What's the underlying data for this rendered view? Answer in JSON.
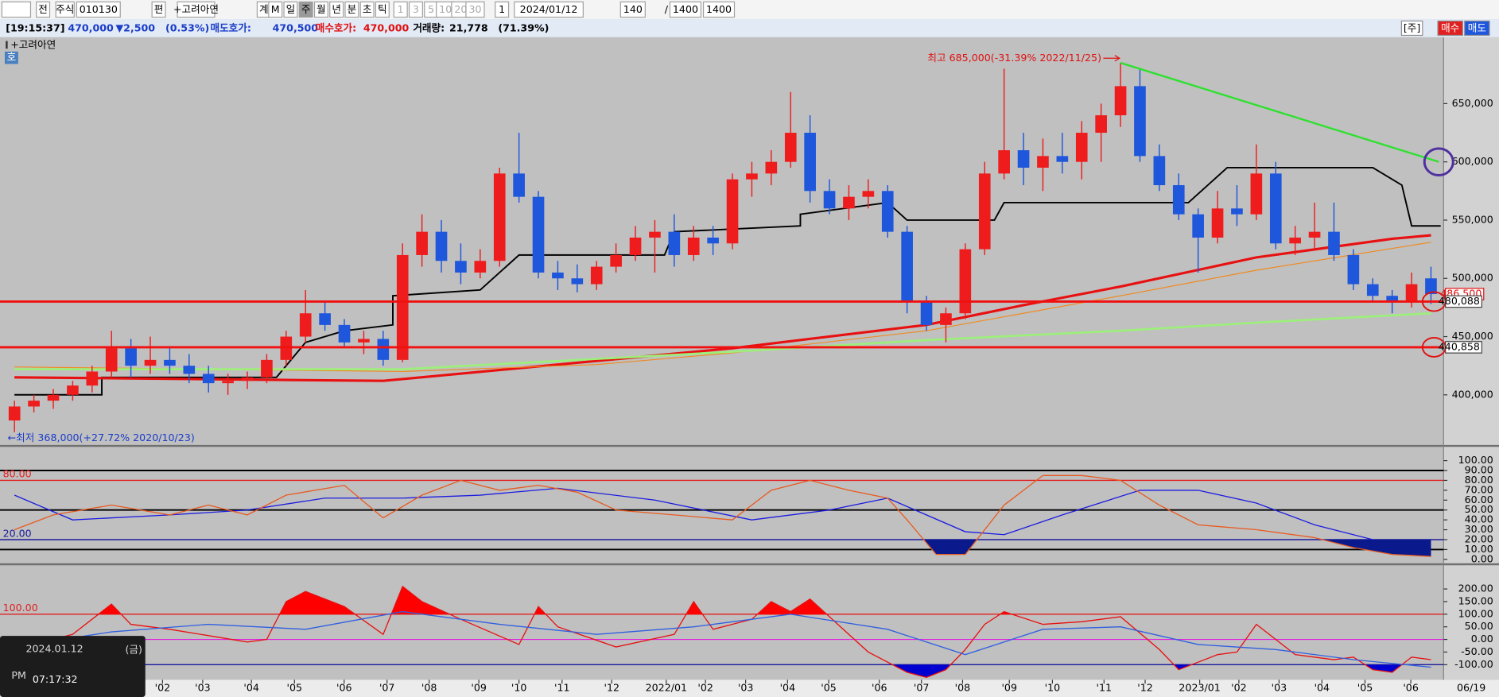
{
  "toolbar": {
    "items": [
      "전",
      "주식",
      "010130",
      "편",
      "+고려아연",
      "계",
      "M",
      "일",
      "주",
      "월",
      "년",
      "분",
      "초",
      "틱",
      "1",
      "3",
      "5",
      "10",
      "20",
      "30",
      "1",
      "2024/01/12",
      "140",
      "/",
      "1400",
      "1400"
    ]
  },
  "info_bar": [
    {
      "text": "[19:15:37]",
      "color": "#000000"
    },
    {
      "text": "470,000",
      "color": "#1a3cc8"
    },
    {
      "text": "▼2,500",
      "color": "#1a3cc8"
    },
    {
      "text": "(0.53%)",
      "color": "#1a3cc8"
    },
    {
      "text": "매도호가:",
      "color": "#1a3cc8"
    },
    {
      "text": "470,500",
      "color": "#1a3cc8"
    },
    {
      "text": "매수호가:",
      "color": "#e01010"
    },
    {
      "text": "470,000",
      "color": "#e01010"
    },
    {
      "text": "거래량:",
      "color": "#000000"
    },
    {
      "text": "21,778",
      "color": "#000000"
    },
    {
      "text": "(71.39%)",
      "color": "#000000"
    }
  ],
  "side_buttons": [
    {
      "text": "[주]",
      "color": "#ffffff"
    },
    {
      "text": "매수",
      "color": "#e02020"
    },
    {
      "text": "매도",
      "color": "#1e56dc"
    }
  ],
  "chart_data": [
    {
      "type": "candlestick",
      "title": "+고려아연",
      "badge": "호",
      "up_color": "#ee1c1c",
      "down_color": "#1e56dc",
      "xlim": [
        -0.5,
        73.5
      ],
      "ylim": [
        357000,
        707000
      ],
      "yticks": [
        {
          "value": 400000,
          "label": "400,000"
        },
        {
          "value": 450000,
          "label": "450,000"
        },
        {
          "value": 500000,
          "label": "500,000"
        },
        {
          "value": 550000,
          "label": "550,000"
        },
        {
          "value": 600000,
          "label": "600,000"
        },
        {
          "value": 650000,
          "label": "650,000"
        }
      ],
      "open": [
        378000,
        390000,
        395000,
        400000,
        408000,
        420000,
        440000,
        425000,
        430000,
        425000,
        418000,
        410000,
        412000,
        415000,
        430000,
        450000,
        470000,
        460000,
        445000,
        448000,
        430000,
        520000,
        540000,
        515000,
        505000,
        515000,
        590000,
        570000,
        505000,
        500000,
        495000,
        510000,
        520000,
        535000,
        540000,
        520000,
        535000,
        530000,
        585000,
        590000,
        600000,
        625000,
        575000,
        560000,
        570000,
        575000,
        540000,
        480000,
        460000,
        470000,
        525000,
        590000,
        610000,
        595000,
        605000,
        600000,
        625000,
        640000,
        665000,
        605000,
        580000,
        555000,
        535000,
        560000,
        555000,
        590000,
        530000,
        535000,
        540000,
        520000,
        495000,
        485000,
        480000,
        500000
      ],
      "high": [
        395000,
        400000,
        405000,
        412000,
        425000,
        455000,
        448000,
        450000,
        440000,
        435000,
        425000,
        418000,
        420000,
        435000,
        455000,
        490000,
        480000,
        465000,
        455000,
        455000,
        530000,
        555000,
        550000,
        530000,
        525000,
        595000,
        625000,
        575000,
        515000,
        512000,
        515000,
        530000,
        545000,
        550000,
        555000,
        545000,
        545000,
        590000,
        600000,
        610000,
        660000,
        640000,
        585000,
        580000,
        585000,
        580000,
        545000,
        485000,
        475000,
        530000,
        600000,
        680000,
        625000,
        620000,
        625000,
        635000,
        650000,
        685000,
        680000,
        615000,
        590000,
        560000,
        575000,
        580000,
        615000,
        600000,
        545000,
        565000,
        565000,
        525000,
        500000,
        490000,
        505000,
        510000
      ],
      "low": [
        368000,
        385000,
        388000,
        395000,
        402000,
        415000,
        415000,
        418000,
        418000,
        410000,
        402000,
        400000,
        405000,
        410000,
        425000,
        445000,
        455000,
        440000,
        435000,
        425000,
        428000,
        510000,
        505000,
        495000,
        500000,
        510000,
        565000,
        500000,
        490000,
        488000,
        490000,
        505000,
        515000,
        505000,
        510000,
        515000,
        520000,
        525000,
        570000,
        580000,
        595000,
        565000,
        555000,
        550000,
        560000,
        535000,
        470000,
        455000,
        445000,
        465000,
        520000,
        585000,
        580000,
        575000,
        590000,
        585000,
        600000,
        630000,
        600000,
        575000,
        550000,
        505000,
        530000,
        545000,
        550000,
        525000,
        520000,
        525000,
        515000,
        490000,
        480000,
        470000,
        475000,
        478000
      ],
      "close": [
        390000,
        395000,
        400000,
        408000,
        420000,
        440000,
        425000,
        430000,
        425000,
        418000,
        410000,
        412000,
        415000,
        430000,
        450000,
        470000,
        460000,
        445000,
        448000,
        430000,
        520000,
        540000,
        515000,
        505000,
        515000,
        590000,
        570000,
        505000,
        500000,
        495000,
        510000,
        520000,
        535000,
        540000,
        520000,
        535000,
        530000,
        585000,
        590000,
        600000,
        625000,
        575000,
        560000,
        570000,
        575000,
        540000,
        480000,
        460000,
        470000,
        525000,
        590000,
        610000,
        595000,
        605000,
        600000,
        625000,
        640000,
        665000,
        605000,
        580000,
        555000,
        535000,
        560000,
        555000,
        590000,
        530000,
        535000,
        540000,
        520000,
        495000,
        485000,
        480000,
        495000,
        486500
      ],
      "overlays": [
        {
          "color": "#000000",
          "x": [
            0,
            4.5,
            4.5,
            13.5,
            15,
            17,
            19.5,
            19.5,
            24,
            26,
            33.5,
            34,
            40.5,
            40.5,
            45,
            46,
            50.5,
            51,
            60.5,
            62.5,
            70,
            71.5,
            72,
            73.5
          ],
          "values": [
            400000,
            400000,
            415000,
            415000,
            445000,
            455000,
            460000,
            485000,
            490000,
            520000,
            520000,
            540000,
            545000,
            555000,
            565000,
            550000,
            550000,
            565000,
            565000,
            595000,
            595000,
            580000,
            545000,
            545000
          ]
        },
        {
          "color": "#e81010",
          "x": [
            0,
            19,
            37,
            47,
            52,
            57,
            64,
            71,
            73
          ],
          "values": [
            415000,
            412000,
            440000,
            460000,
            477000,
            493000,
            518000,
            534000,
            537000
          ]
        },
        {
          "color": "#f08a20",
          "x": [
            0,
            20,
            30,
            37,
            47,
            57,
            64,
            73
          ],
          "values": [
            424000,
            420000,
            426000,
            436000,
            455000,
            485000,
            507000,
            531000
          ]
        },
        {
          "color": "#9cf07a",
          "x": [
            0,
            20,
            37,
            47,
            57,
            64,
            73
          ],
          "values": [
            422000,
            422000,
            437000,
            447000,
            455000,
            462000,
            470000
          ]
        }
      ],
      "hlines": [
        {
          "value": 480088,
          "label": "480,088"
        },
        {
          "value": 440858,
          "label": "440,858"
        }
      ],
      "last_label": {
        "value": 486500,
        "label": "486,500"
      },
      "trendline": {
        "color": "#30e030",
        "x": [
          57,
          73.4
        ],
        "values": [
          685000,
          600000
        ]
      },
      "annotations": {
        "high": "최고 685,000(-31.39% 2022/11/25)",
        "low": "←최저 368,000(+27.72% 2020/10/23)"
      }
    },
    {
      "type": "line",
      "xlim": [
        -0.5,
        73.5
      ],
      "ylim": [
        -4,
        113
      ],
      "yticks": [
        {
          "value": 100,
          "label": "100.00"
        },
        {
          "value": 90,
          "label": "90.00"
        },
        {
          "value": 80,
          "label": "80.00"
        },
        {
          "value": 70,
          "label": "70.00"
        },
        {
          "value": 60,
          "label": "60.00"
        },
        {
          "value": 50,
          "label": "50.00"
        },
        {
          "value": 40,
          "label": "40.00"
        },
        {
          "value": 30,
          "label": "30.00"
        },
        {
          "value": 20,
          "label": "20.00"
        },
        {
          "value": 10,
          "label": "10.00"
        },
        {
          "value": 0,
          "label": "0.00"
        }
      ],
      "levels": [
        {
          "value": 80,
          "label": "80.00",
          "color": "#e02020"
        },
        {
          "value": 20,
          "label": "20.00",
          "color": "#1a1a9a"
        }
      ],
      "guides": [
        {
          "value": 90,
          "color": "#000000"
        },
        {
          "value": 50,
          "color": "#000000"
        },
        {
          "value": 10,
          "color": "#000000"
        }
      ],
      "fill_below_color": "#0a1a8c",
      "series": [
        {
          "color": "#1c1ce0",
          "x": [
            0,
            3,
            8,
            12,
            16,
            20,
            24,
            28,
            33,
            38,
            42,
            45,
            49,
            51,
            54,
            58,
            61,
            64,
            67,
            70,
            73
          ],
          "values": [
            65,
            40,
            45,
            50,
            62,
            62,
            65,
            72,
            60,
            40,
            50,
            62,
            28,
            25,
            45,
            70,
            70,
            57,
            35,
            20,
            12
          ]
        },
        {
          "color": "#e85a20",
          "fill": true,
          "x": [
            0,
            2,
            5,
            8,
            10,
            12,
            14,
            17,
            19,
            21,
            23,
            25,
            27,
            29,
            31,
            34,
            37,
            39,
            41,
            43,
            45,
            46,
            47.5,
            49,
            51,
            53,
            55,
            57,
            59,
            61,
            64,
            67,
            69,
            71,
            73
          ],
          "values": [
            30,
            45,
            55,
            45,
            55,
            45,
            65,
            75,
            42,
            65,
            80,
            70,
            75,
            68,
            50,
            45,
            40,
            70,
            80,
            70,
            62,
            40,
            5,
            5,
            55,
            85,
            85,
            80,
            55,
            35,
            30,
            22,
            12,
            5,
            3
          ]
        }
      ]
    },
    {
      "type": "line",
      "xlim": [
        -0.5,
        73.5
      ],
      "ylim": [
        -160,
        294
      ],
      "yticks": [
        {
          "value": 200,
          "label": "200.00"
        },
        {
          "value": 150,
          "label": "150.00"
        },
        {
          "value": 100,
          "label": "100.00"
        },
        {
          "value": 50,
          "label": "50.00"
        },
        {
          "value": 0,
          "label": "0.00"
        },
        {
          "value": -50,
          "label": "-50.00"
        },
        {
          "value": -100,
          "label": "-100.00"
        }
      ],
      "levels": [
        {
          "value": 100,
          "label": "100.00",
          "color": "#e02020"
        },
        {
          "value": -100,
          "color": "#1a1a9a"
        }
      ],
      "guides": [
        {
          "value": 0,
          "color": "#e020e0"
        }
      ],
      "fill_above_color": "#ff0000",
      "fill_below_color": "#0000d0",
      "series": [
        {
          "color": "#e81010",
          "fill": true,
          "x": [
            0,
            3,
            5,
            6,
            8,
            12,
            13,
            14,
            15,
            17,
            19,
            20,
            21,
            23,
            26,
            27,
            28,
            31,
            34,
            35,
            36,
            38,
            39,
            40,
            41,
            42,
            44,
            46,
            47,
            48,
            49,
            50,
            51,
            53,
            55,
            57,
            59,
            60,
            62,
            63,
            64,
            66,
            68,
            69,
            70,
            71,
            72,
            73
          ],
          "values": [
            -40,
            20,
            140,
            60,
            40,
            -10,
            0,
            150,
            190,
            130,
            20,
            210,
            150,
            80,
            -20,
            130,
            50,
            -30,
            20,
            150,
            40,
            80,
            150,
            110,
            160,
            90,
            -50,
            -130,
            -150,
            -120,
            -40,
            60,
            110,
            60,
            70,
            90,
            -40,
            -120,
            -60,
            -50,
            60,
            -60,
            -80,
            -70,
            -120,
            -130,
            -70,
            -80
          ]
        },
        {
          "color": "#3060e0",
          "x": [
            0,
            5,
            10,
            15,
            20,
            25,
            30,
            35,
            40,
            45,
            49,
            53,
            57,
            61,
            65,
            69,
            73
          ],
          "values": [
            -30,
            30,
            60,
            40,
            110,
            60,
            20,
            50,
            100,
            40,
            -60,
            40,
            50,
            -20,
            -40,
            -80,
            -110
          ]
        }
      ],
      "xticks": [
        {
          "value": 7.63,
          "label": "'02"
        },
        {
          "value": 9.7,
          "label": "'03"
        },
        {
          "value": 12.21,
          "label": "'04"
        },
        {
          "value": 14.43,
          "label": "'05"
        },
        {
          "value": 16.99,
          "label": "'06"
        },
        {
          "value": 19.2,
          "label": "'07"
        },
        {
          "value": 21.37,
          "label": "'08"
        },
        {
          "value": 23.93,
          "label": "'09"
        },
        {
          "value": 26,
          "label": "'10"
        },
        {
          "value": 28.22,
          "label": "'11"
        },
        {
          "value": 30.78,
          "label": "'12"
        },
        {
          "value": 33.59,
          "label": "2022/01"
        },
        {
          "value": 35.61,
          "label": "'02"
        },
        {
          "value": 37.68,
          "label": "'03"
        },
        {
          "value": 39.84,
          "label": "'04"
        },
        {
          "value": 41.96,
          "label": "'05"
        },
        {
          "value": 44.57,
          "label": "'06"
        },
        {
          "value": 46.74,
          "label": "'07"
        },
        {
          "value": 48.86,
          "label": "'08"
        },
        {
          "value": 51.27,
          "label": "'09"
        },
        {
          "value": 53.49,
          "label": "'10"
        },
        {
          "value": 56.15,
          "label": "'11"
        },
        {
          "value": 58.27,
          "label": "'12"
        },
        {
          "value": 61.08,
          "label": "2023/01"
        },
        {
          "value": 63.1,
          "label": "'02"
        },
        {
          "value": 65.17,
          "label": "'03"
        },
        {
          "value": 67.38,
          "label": "'04"
        },
        {
          "value": 69.6,
          "label": "'05"
        },
        {
          "value": 71.96,
          "label": "'06"
        }
      ],
      "x_end_label": "06/19"
    }
  ],
  "clock": {
    "date": "2024.01.12",
    "weekday": "(금)",
    "ampm": "PM",
    "time": "07:17:32"
  }
}
